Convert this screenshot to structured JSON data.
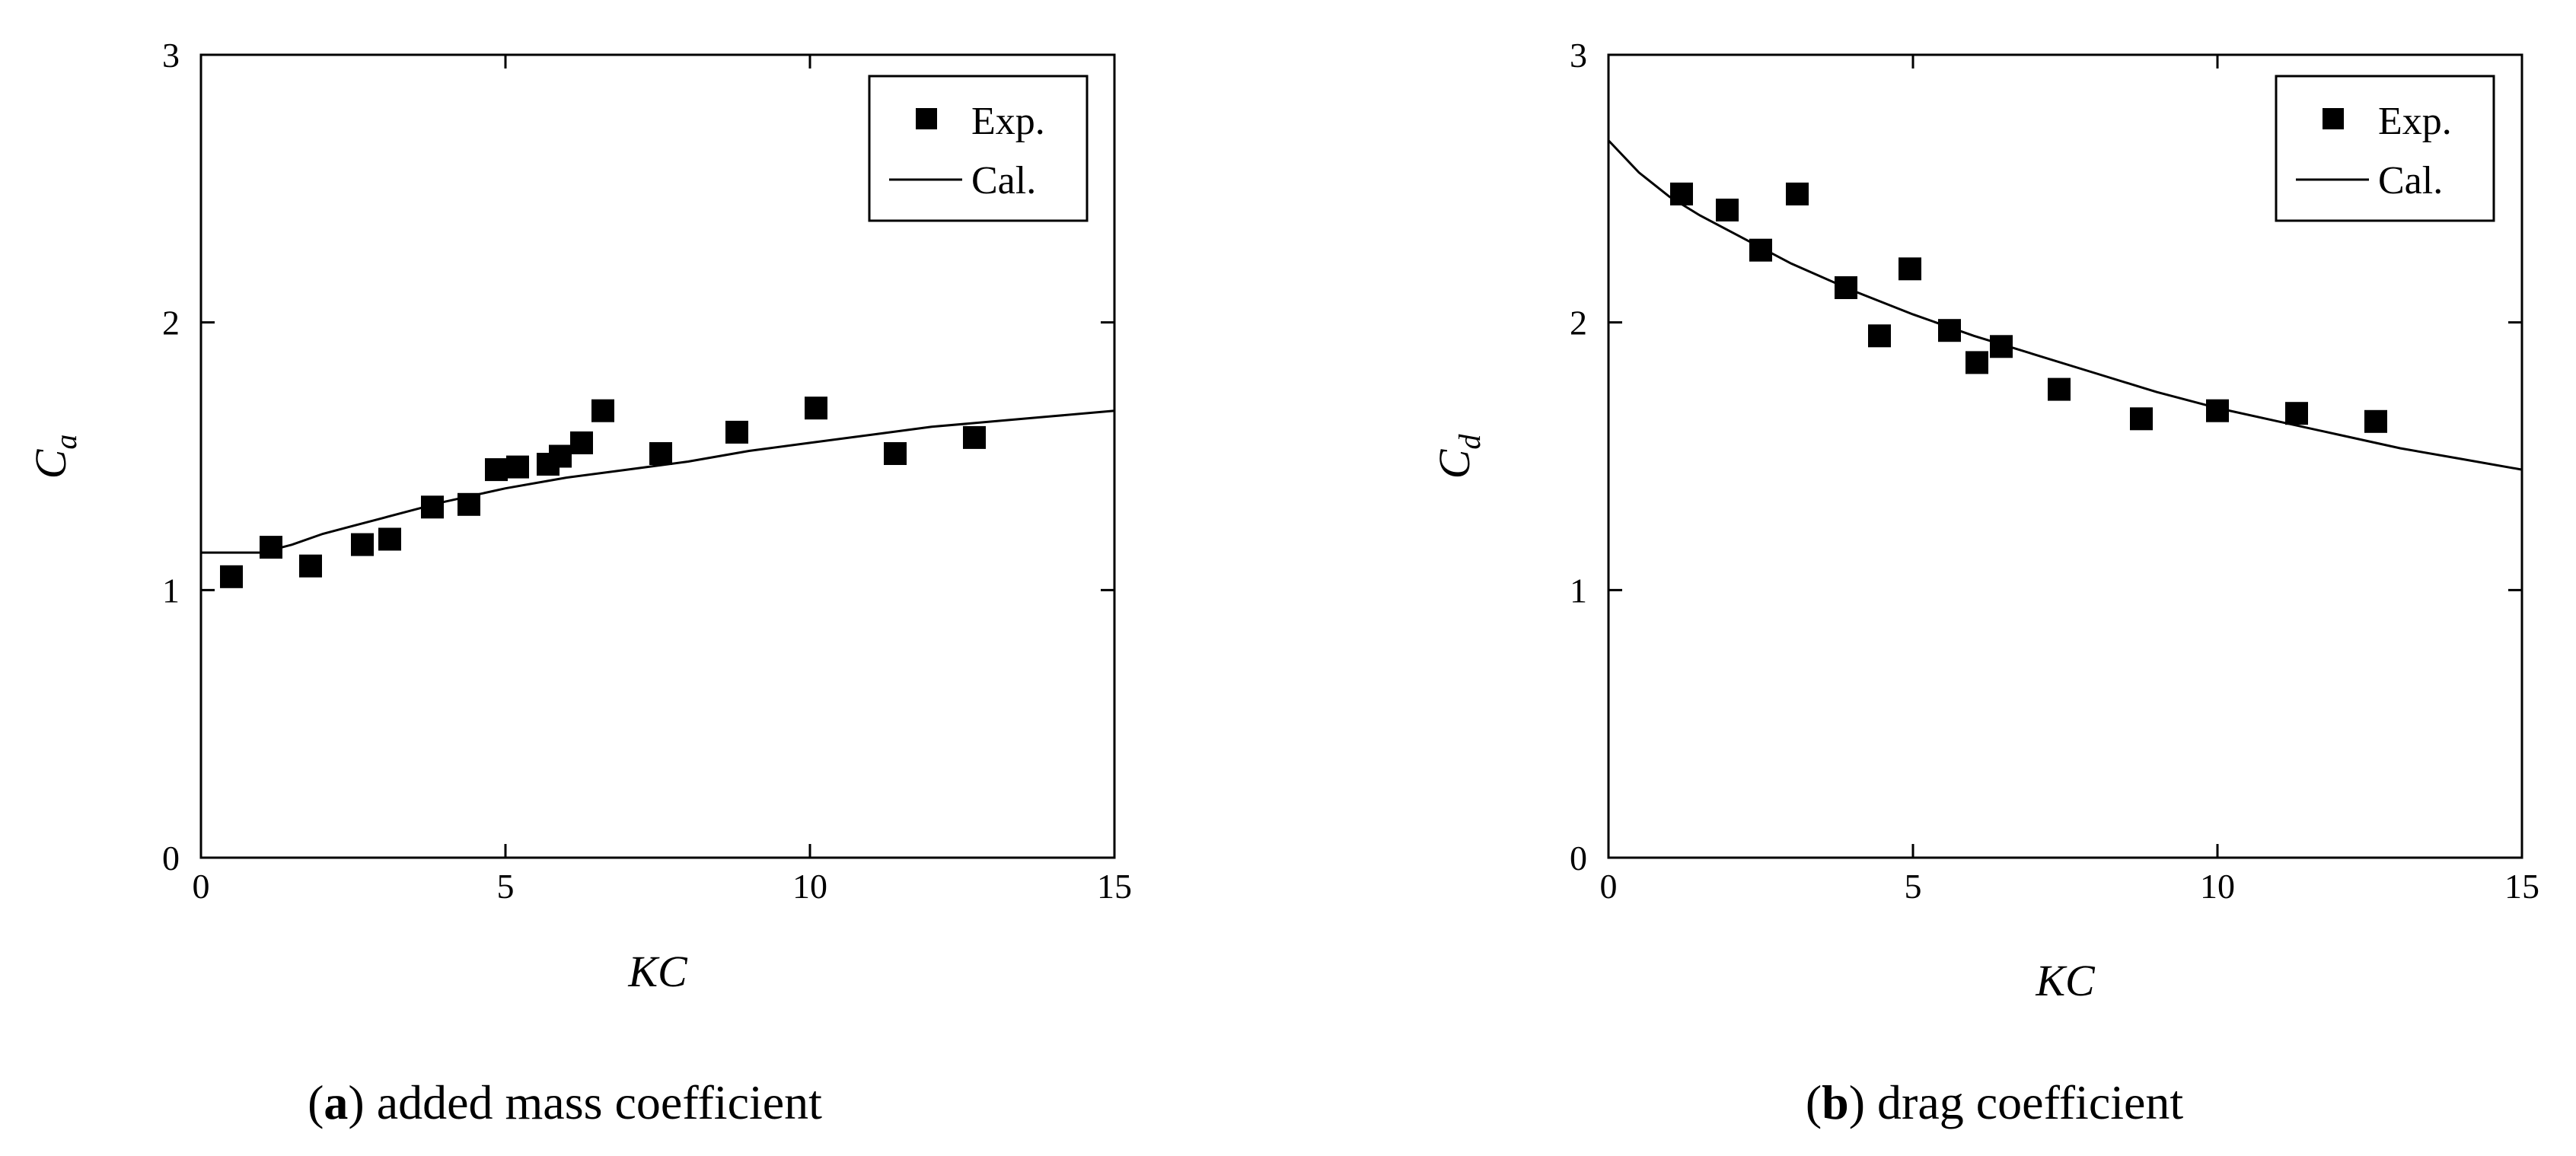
{
  "chart_data": [
    {
      "id": "a",
      "type": "scatter",
      "caption_letter": "a",
      "caption_text": "added mass coefficient",
      "xlabel": "KC",
      "ylabel_main": "C",
      "ylabel_sub": "a",
      "xlim": [
        0,
        15
      ],
      "ylim": [
        0,
        3
      ],
      "xticks": [
        0,
        5,
        10,
        15
      ],
      "yticks": [
        0,
        1,
        2,
        3
      ],
      "legend": {
        "placement": "top-right",
        "exp_label": "Exp.",
        "cal_label": "Cal."
      },
      "series": [
        {
          "name": "Exp.",
          "kind": "markers",
          "x": [
            0.5,
            1.15,
            1.8,
            2.65,
            3.1,
            3.8,
            4.4,
            4.85,
            5.2,
            5.7,
            5.9,
            6.25,
            6.6,
            7.55,
            8.8,
            10.1,
            11.4,
            12.7
          ],
          "y": [
            1.05,
            1.16,
            1.09,
            1.17,
            1.19,
            1.31,
            1.32,
            1.45,
            1.46,
            1.47,
            1.5,
            1.55,
            1.67,
            1.51,
            1.59,
            1.68,
            1.51,
            1.57
          ]
        },
        {
          "name": "Cal.",
          "kind": "line",
          "x": [
            0,
            1,
            1.5,
            2,
            2.5,
            3,
            3.5,
            4,
            5,
            6,
            7,
            8,
            9,
            10,
            11,
            12,
            13,
            14,
            15
          ],
          "y": [
            1.14,
            1.14,
            1.17,
            1.21,
            1.24,
            1.27,
            1.3,
            1.33,
            1.38,
            1.42,
            1.45,
            1.48,
            1.52,
            1.55,
            1.58,
            1.61,
            1.63,
            1.65,
            1.67
          ]
        }
      ]
    },
    {
      "id": "b",
      "type": "scatter",
      "caption_letter": "b",
      "caption_text": "drag coefficient",
      "xlabel": "KC",
      "ylabel_main": "C",
      "ylabel_sub": "d",
      "xlim": [
        0,
        15
      ],
      "ylim": [
        0,
        3
      ],
      "xticks": [
        0,
        5,
        10,
        15
      ],
      "yticks": [
        0,
        1,
        2,
        3
      ],
      "legend": {
        "placement": "top-right",
        "exp_label": "Exp.",
        "cal_label": "Cal."
      },
      "series": [
        {
          "name": "Exp.",
          "kind": "markers",
          "x": [
            1.2,
            1.95,
            2.5,
            3.1,
            3.9,
            4.45,
            4.95,
            5.6,
            6.05,
            6.45,
            7.4,
            8.75,
            10.0,
            11.3,
            12.6
          ],
          "y": [
            2.48,
            2.42,
            2.27,
            2.48,
            2.13,
            1.95,
            2.2,
            1.97,
            1.85,
            1.91,
            1.75,
            1.64,
            1.67,
            1.66,
            1.63
          ]
        },
        {
          "name": "Cal.",
          "kind": "line",
          "x": [
            0,
            0.5,
            1,
            1.5,
            2,
            2.5,
            3,
            4,
            5,
            6,
            7,
            8,
            9,
            10,
            11,
            12,
            13,
            14,
            15
          ],
          "y": [
            2.68,
            2.56,
            2.47,
            2.4,
            2.34,
            2.28,
            2.22,
            2.12,
            2.03,
            1.95,
            1.88,
            1.81,
            1.74,
            1.68,
            1.63,
            1.58,
            1.53,
            1.49,
            1.45
          ]
        }
      ]
    }
  ]
}
